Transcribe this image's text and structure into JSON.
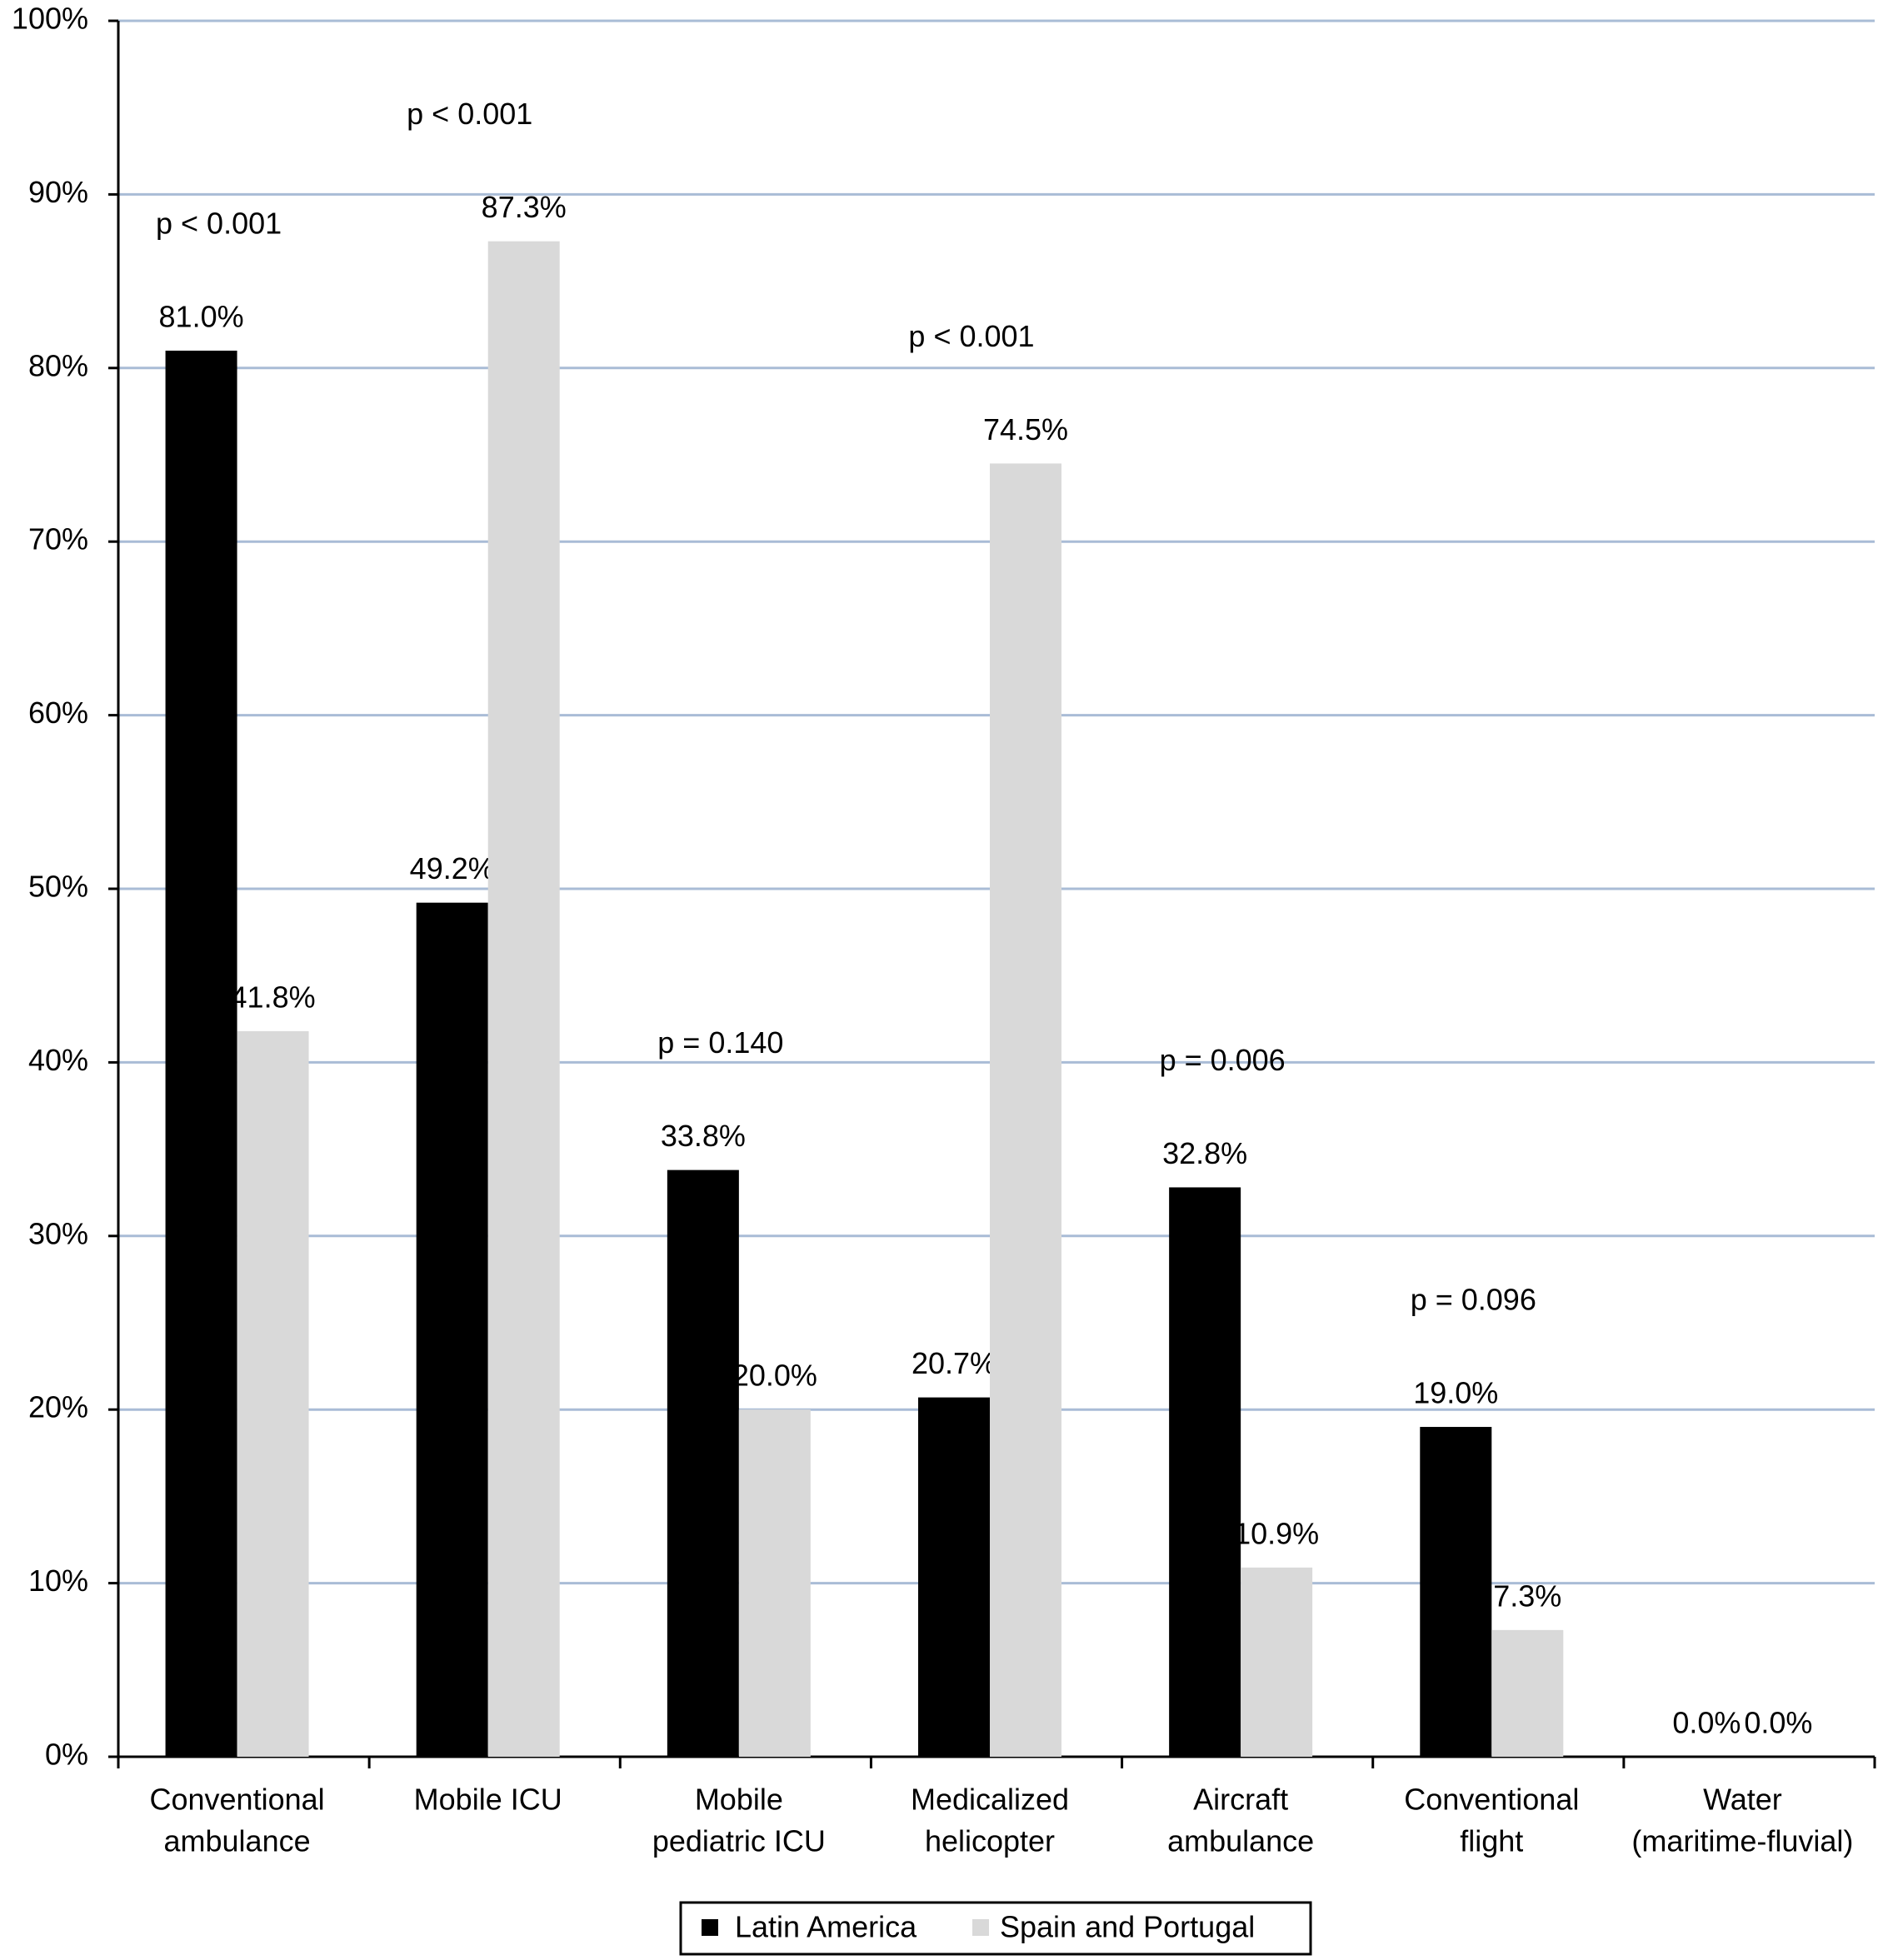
{
  "chart_data": {
    "type": "bar",
    "categories": [
      [
        "Conventional",
        "ambulance"
      ],
      [
        "Mobile ICU"
      ],
      [
        "Mobile",
        "pediatric ICU"
      ],
      [
        "Medicalized",
        "helicopter"
      ],
      [
        "Aircraft",
        "ambulance"
      ],
      [
        "Conventional",
        "flight"
      ],
      [
        "Water",
        "(maritime-fluvial)"
      ]
    ],
    "series": [
      {
        "name": "Latin America",
        "color": "#000000",
        "values": [
          81.0,
          49.2,
          33.8,
          20.7,
          32.8,
          19.0,
          0.0
        ],
        "value_labels": [
          "81.0%",
          "49.2%",
          "33.8%",
          "20.7%",
          "32.8%",
          "19.0%",
          "0.0%"
        ]
      },
      {
        "name": "Spain and Portugal",
        "color": "#d9d9d9",
        "values": [
          41.8,
          87.3,
          20.0,
          74.5,
          10.9,
          7.3,
          0.0
        ],
        "value_labels": [
          "41.8%",
          "87.3%",
          "20.0%",
          "74.5%",
          "10.9%",
          "7.3%",
          "0.0%"
        ]
      }
    ],
    "annotations": [
      "p < 0.001",
      "p < 0.001",
      "p = 0.140",
      "p < 0.001",
      "p = 0.006",
      "p = 0.096"
    ],
    "ylim": [
      0,
      100
    ],
    "yticks": [
      {
        "value": 0,
        "label": "0%"
      },
      {
        "value": 10,
        "label": "10%"
      },
      {
        "value": 20,
        "label": "20%"
      },
      {
        "value": 30,
        "label": "30%"
      },
      {
        "value": 40,
        "label": "40%"
      },
      {
        "value": 50,
        "label": "50%"
      },
      {
        "value": 60,
        "label": "60%"
      },
      {
        "value": 70,
        "label": "70%"
      },
      {
        "value": 80,
        "label": "80%"
      },
      {
        "value": 90,
        "label": "90%"
      },
      {
        "value": 100,
        "label": "100%"
      }
    ],
    "grid": true,
    "grid_color": "#a9bcd6",
    "legend": "bottom"
  }
}
